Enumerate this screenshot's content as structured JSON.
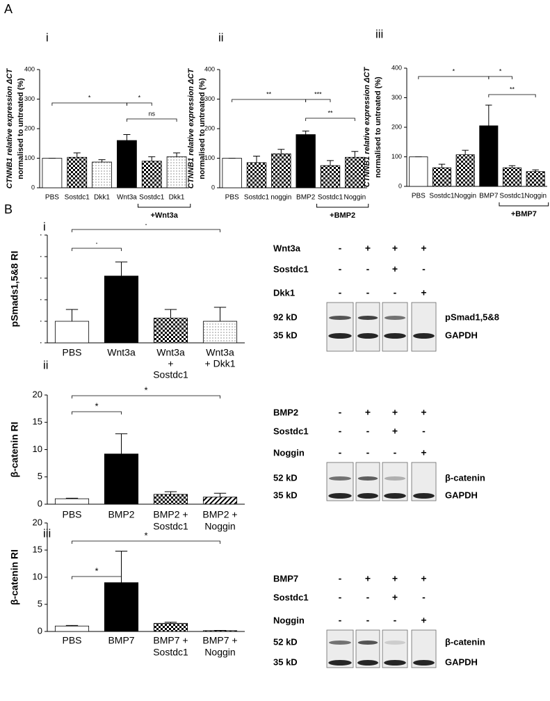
{
  "panel_labels": [
    "A",
    "B"
  ],
  "chart_data": [
    {
      "type": "bar",
      "label": "i",
      "y_label": [
        "CTNNB1 relative expression ΔCT",
        "normalised to untreated (%)"
      ],
      "categories": [
        "PBS",
        "Sostdc1",
        "Dkk1",
        "Wnt3a",
        "Sostdc1",
        "Dkk1"
      ],
      "values": [
        100,
        103,
        87,
        160,
        90,
        105
      ],
      "errors": [
        0,
        15,
        8,
        20,
        15,
        13
      ],
      "fills": [
        "white",
        "checker",
        "dots",
        "black",
        "checker",
        "dots"
      ],
      "ylim": [
        0,
        400
      ],
      "yticks": [
        0,
        100,
        200,
        300,
        400
      ],
      "group": {
        "label": "+Wnt3a",
        "from": 4,
        "to": 5
      },
      "significance": [
        {
          "from": 0,
          "to": 3,
          "label": "*"
        },
        {
          "from": 3,
          "to": 4,
          "label": "*"
        },
        {
          "from": 3,
          "to": 5,
          "label": "ns"
        }
      ]
    },
    {
      "type": "bar",
      "label": "ii",
      "y_label": [
        "CTNNB1 relative expression ΔCT",
        "normalised to untreated (%)"
      ],
      "categories": [
        "PBS",
        "Sostdc1",
        "noggin",
        "BMP2",
        "Sostdc1",
        "Noggin"
      ],
      "values": [
        100,
        85,
        115,
        180,
        75,
        103
      ],
      "errors": [
        0,
        22,
        15,
        12,
        17,
        20
      ],
      "fills": [
        "white",
        "checker",
        "checker",
        "black",
        "checker",
        "checker"
      ],
      "ylim": [
        0,
        400
      ],
      "yticks": [
        0,
        100,
        200,
        300,
        400
      ],
      "group": {
        "label": "+BMP2",
        "from": 4,
        "to": 5
      },
      "significance": [
        {
          "from": 0,
          "to": 3,
          "label": "**"
        },
        {
          "from": 3,
          "to": 4,
          "label": "***"
        },
        {
          "from": 3,
          "to": 5,
          "label": "**"
        }
      ]
    },
    {
      "type": "bar",
      "label": "iii",
      "y_label": [
        "CTNNB1 relative expression ΔCT",
        "normalised to untreated (%)"
      ],
      "categories": [
        "PBS",
        "Sostdc1",
        "Noggin",
        "BMP7",
        "Sostdc1",
        "Noggin"
      ],
      "values": [
        100,
        63,
        107,
        205,
        63,
        50
      ],
      "errors": [
        0,
        12,
        15,
        70,
        7,
        6
      ],
      "fills": [
        "white",
        "checker",
        "checker",
        "black",
        "checker",
        "checker"
      ],
      "ylim": [
        0,
        400
      ],
      "yticks": [
        0,
        100,
        200,
        300,
        400
      ],
      "group": {
        "label": "+BMP7",
        "from": 4,
        "to": 5
      },
      "significance": [
        {
          "from": 0,
          "to": 3,
          "label": "*"
        },
        {
          "from": 3,
          "to": 4,
          "label": "*"
        },
        {
          "from": 3,
          "to": 5,
          "label": "**"
        }
      ]
    },
    {
      "type": "bar",
      "label": "i",
      "y_label": [
        "pSmads1,5&8 RI"
      ],
      "categories": [
        [
          "PBS"
        ],
        [
          "Wnt3a"
        ],
        [
          "Wnt3a",
          "+",
          "Sostdc1"
        ],
        [
          "Wnt3a",
          "+ Dkk1"
        ]
      ],
      "values": [
        1.0,
        3.1,
        1.15,
        1.0
      ],
      "errors": [
        0.55,
        0.65,
        0.4,
        0.65
      ],
      "fills": [
        "white",
        "black",
        "checker",
        "dots"
      ],
      "ylim": [
        0,
        5
      ],
      "yticks": [
        {
          "value": 0,
          "label": "·"
        },
        {
          "value": 1,
          "label": "·"
        },
        {
          "value": 2,
          "label": "·"
        },
        {
          "value": 3,
          "label": "·"
        },
        {
          "value": 4,
          "label": "·"
        },
        {
          "value": 5,
          "label": "·"
        }
      ],
      "significance": [
        {
          "from": 0,
          "to": 1,
          "label": "·"
        },
        {
          "from": 0,
          "to": 3,
          "label": "·"
        }
      ]
    },
    {
      "type": "bar",
      "label": "ii",
      "y_label": [
        "β-catenin RI"
      ],
      "categories": [
        [
          "PBS"
        ],
        [
          "BMP2"
        ],
        [
          "BMP2 +",
          "Sostdc1"
        ],
        [
          "BMP2 +",
          "Noggin"
        ]
      ],
      "values": [
        1.0,
        9.2,
        1.8,
        1.3
      ],
      "errors": [
        0.1,
        3.7,
        0.5,
        0.7
      ],
      "fills": [
        "white",
        "black",
        "checker",
        "stripes"
      ],
      "ylim": [
        0,
        20
      ],
      "yticks": [
        0,
        5,
        10,
        15,
        20
      ],
      "significance": [
        {
          "from": 0,
          "to": 1,
          "label": "*"
        },
        {
          "from": 0,
          "to": 3,
          "label": "*"
        }
      ]
    },
    {
      "type": "bar",
      "label": "iii",
      "y_label": [
        "β-catenin RI"
      ],
      "categories": [
        [
          "PBS"
        ],
        [
          "BMP7"
        ],
        [
          "BMP7 +",
          "Sostdc1"
        ],
        [
          "BMP7 +",
          "Noggin"
        ]
      ],
      "values": [
        1.0,
        9.0,
        1.5,
        0.15
      ],
      "errors": [
        0.1,
        5.8,
        0.2,
        0.05
      ],
      "fills": [
        "white",
        "black",
        "checker",
        "stripes"
      ],
      "ylim": [
        0,
        20
      ],
      "yticks": [
        0,
        5,
        10,
        15,
        20
      ],
      "significance": [
        {
          "from": 0,
          "to": 1,
          "label": "*"
        },
        {
          "from": 0,
          "to": 3,
          "label": "*"
        }
      ]
    }
  ],
  "blots": [
    {
      "treatments": [
        {
          "name": "Wnt3a",
          "signs": [
            "-",
            "+",
            "+",
            "+"
          ]
        },
        {
          "name": "Sostdc1",
          "signs": [
            "-",
            "-",
            "+",
            "-"
          ]
        },
        {
          "name": "Dkk1",
          "signs": [
            "-",
            "-",
            "-",
            "+"
          ]
        }
      ],
      "bands": [
        {
          "kd": "92 kD",
          "protein": "pSmad1,5&8"
        },
        {
          "kd": "35 kD",
          "protein": "GAPDH"
        }
      ]
    },
    {
      "treatments": [
        {
          "name": "BMP2",
          "signs": [
            "-",
            "+",
            "+",
            "+"
          ]
        },
        {
          "name": "Sostdc1",
          "signs": [
            "-",
            "-",
            "+",
            "-"
          ]
        },
        {
          "name": "Noggin",
          "signs": [
            "-",
            "-",
            "-",
            "+"
          ]
        }
      ],
      "bands": [
        {
          "kd": "52 kD",
          "protein": "β-catenin"
        },
        {
          "kd": "35 kD",
          "protein": "GAPDH"
        }
      ]
    },
    {
      "treatments": [
        {
          "name": "BMP7",
          "signs": [
            "-",
            "+",
            "+",
            "+"
          ]
        },
        {
          "name": "Sostdc1",
          "signs": [
            "-",
            "-",
            "+",
            "-"
          ]
        },
        {
          "name": "Noggin",
          "signs": [
            "-",
            "-",
            "-",
            "+"
          ]
        }
      ],
      "bands": [
        {
          "kd": "52 kD",
          "protein": "β-catenin"
        },
        {
          "kd": "35 kD",
          "protein": "GAPDH"
        }
      ]
    }
  ]
}
